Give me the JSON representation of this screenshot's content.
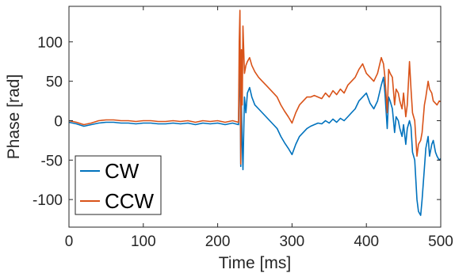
{
  "chart_data": {
    "type": "line",
    "xlabel": "Time [ms]",
    "ylabel": "Phase [rad]",
    "xlim": [
      0,
      500
    ],
    "ylim": [
      -135,
      145
    ],
    "xticks": [
      0,
      100,
      200,
      300,
      400,
      500
    ],
    "yticks": [
      -100,
      -50,
      0,
      50,
      100
    ],
    "grid": false,
    "legend_position": "bottom-left",
    "series": [
      {
        "name": "CW",
        "color": "#0072BD",
        "x": [
          0,
          10,
          20,
          30,
          40,
          50,
          60,
          70,
          80,
          90,
          100,
          110,
          120,
          130,
          140,
          150,
          160,
          170,
          180,
          190,
          200,
          210,
          220,
          228,
          229,
          230,
          231,
          232,
          233,
          234,
          236,
          238,
          240,
          243,
          246,
          250,
          255,
          260,
          265,
          270,
          275,
          280,
          285,
          290,
          295,
          300,
          305,
          310,
          315,
          320,
          325,
          330,
          335,
          340,
          345,
          350,
          355,
          360,
          365,
          370,
          375,
          380,
          385,
          390,
          395,
          400,
          405,
          410,
          415,
          420,
          423,
          425,
          428,
          430,
          432,
          435,
          438,
          440,
          443,
          445,
          448,
          450,
          453,
          455,
          458,
          460,
          462,
          465,
          468,
          470,
          473,
          475,
          478,
          480,
          483,
          485,
          488,
          490,
          493,
          495,
          498,
          500
        ],
        "y": [
          -2,
          -4,
          -7,
          -5,
          -3,
          -2,
          -2,
          -3,
          -3,
          -4,
          -3,
          -3,
          -4,
          -4,
          -3,
          -4,
          -3,
          -5,
          -3,
          -4,
          -3,
          -5,
          -3,
          -5,
          50,
          90,
          -58,
          20,
          -30,
          -62,
          30,
          10,
          35,
          42,
          30,
          20,
          15,
          10,
          5,
          0,
          -5,
          -10,
          -20,
          -28,
          -35,
          -43,
          -30,
          -20,
          -15,
          -10,
          -7,
          -5,
          -3,
          -4,
          0,
          -3,
          2,
          -2,
          3,
          0,
          5,
          10,
          15,
          25,
          30,
          35,
          22,
          15,
          25,
          45,
          55,
          35,
          -10,
          30,
          25,
          15,
          -15,
          5,
          0,
          -10,
          -20,
          -5,
          -30,
          -10,
          0,
          -8,
          -40,
          -50,
          -100,
          -115,
          -120,
          -100,
          -60,
          -35,
          -20,
          -45,
          -30,
          -25,
          -40,
          -45,
          -50,
          -48
        ]
      },
      {
        "name": "CCW",
        "color": "#D95319",
        "x": [
          0,
          10,
          20,
          30,
          40,
          50,
          60,
          70,
          80,
          90,
          100,
          110,
          120,
          130,
          140,
          150,
          160,
          170,
          180,
          190,
          200,
          210,
          220,
          228,
          229,
          230,
          231,
          232,
          233,
          234,
          236,
          238,
          240,
          243,
          246,
          250,
          255,
          260,
          265,
          270,
          275,
          280,
          285,
          290,
          295,
          300,
          305,
          310,
          315,
          320,
          325,
          330,
          335,
          340,
          345,
          350,
          355,
          360,
          365,
          370,
          375,
          380,
          385,
          390,
          395,
          400,
          405,
          410,
          415,
          420,
          423,
          425,
          428,
          430,
          432,
          435,
          438,
          440,
          443,
          445,
          448,
          450,
          453,
          455,
          458,
          460,
          462,
          465,
          468,
          470,
          473,
          475,
          478,
          480,
          483,
          485,
          488,
          490,
          493,
          495,
          498,
          500
        ],
        "y": [
          0,
          -2,
          -5,
          -3,
          0,
          1,
          1,
          0,
          0,
          -1,
          0,
          0,
          -1,
          -1,
          0,
          -1,
          0,
          -2,
          0,
          -1,
          0,
          -2,
          0,
          -2,
          100,
          140,
          -55,
          90,
          20,
          120,
          60,
          70,
          75,
          80,
          70,
          62,
          55,
          50,
          45,
          40,
          35,
          30,
          20,
          12,
          5,
          -3,
          10,
          20,
          25,
          30,
          30,
          32,
          30,
          28,
          35,
          30,
          38,
          33,
          40,
          35,
          45,
          50,
          55,
          65,
          72,
          60,
          55,
          50,
          60,
          80,
          72,
          55,
          10,
          65,
          60,
          55,
          20,
          40,
          35,
          25,
          15,
          35,
          5,
          20,
          75,
          40,
          10,
          0,
          -45,
          -30,
          -25,
          -15,
          20,
          30,
          50,
          40,
          35,
          25,
          22,
          20,
          25,
          24
        ]
      }
    ]
  }
}
